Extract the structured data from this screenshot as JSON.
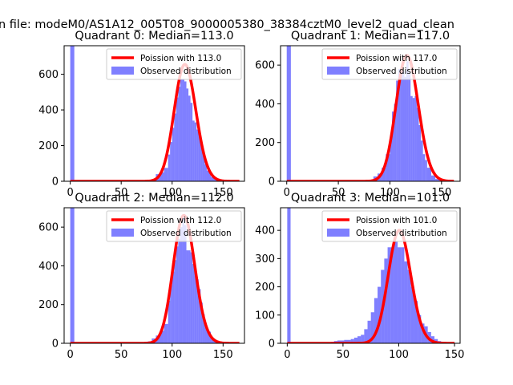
{
  "figure": {
    "suptitle": "n file: modeM0/AS1A12_005T08_9000005380_38384cztM0_level2_quad_clean"
  },
  "chart_data": [
    {
      "type": "bar",
      "title": "Quadrant 0: Median=113.0",
      "median": 113.0,
      "xlim": [
        -6,
        171
      ],
      "ylim": [
        0,
        760
      ],
      "xticks": [
        0,
        50,
        100,
        150
      ],
      "yticks": [
        0,
        200,
        400,
        600
      ],
      "legend": {
        "placement": "top-right",
        "entries": [
          "Poission with 113.0",
          "Observed distribution"
        ]
      },
      "hist": {
        "name": "Observed distribution",
        "color": "#0000ff",
        "alpha": 0.5,
        "edges": [
          0,
          4,
          8,
          12,
          16,
          20,
          24,
          28,
          32,
          36,
          40,
          44,
          48,
          52,
          56,
          60,
          64,
          68,
          72,
          76,
          80,
          84,
          88,
          92,
          96,
          98,
          100,
          102,
          104,
          106,
          108,
          110,
          112,
          114,
          116,
          118,
          120,
          122,
          124,
          126,
          128,
          130,
          132,
          134,
          138,
          142,
          146,
          150,
          154,
          158,
          162,
          166
        ],
        "values": [
          760,
          0,
          0,
          0,
          0,
          0,
          0,
          0,
          0,
          0,
          0,
          0,
          0,
          0,
          0,
          0,
          0,
          0,
          0,
          0,
          5,
          40,
          50,
          75,
          150,
          220,
          300,
          380,
          470,
          530,
          570,
          570,
          560,
          520,
          480,
          440,
          340,
          330,
          290,
          265,
          210,
          150,
          95,
          60,
          25,
          12,
          6,
          3,
          2,
          0,
          0
        ]
      },
      "fit": {
        "name": "Poission with 113.0",
        "color": "#ff0000",
        "mu": 113.0,
        "peak": 655,
        "x_range": [
          0,
          166
        ]
      }
    },
    {
      "type": "bar",
      "title": "Quadrant 1: Median=117.0",
      "median": 117.0,
      "xlim": [
        -6,
        168
      ],
      "ylim": [
        0,
        700
      ],
      "xticks": [
        0,
        50,
        100,
        150
      ],
      "yticks": [
        0,
        200,
        400,
        600
      ],
      "legend": {
        "placement": "top-right",
        "entries": [
          "Poission with 117.0",
          "Observed distribution"
        ]
      },
      "hist": {
        "name": "Observed distribution",
        "color": "#0000ff",
        "alpha": 0.5,
        "edges": [
          0,
          4,
          8,
          12,
          16,
          20,
          24,
          28,
          32,
          36,
          40,
          44,
          48,
          52,
          56,
          60,
          64,
          68,
          72,
          76,
          80,
          84,
          88,
          92,
          96,
          100,
          102,
          104,
          106,
          108,
          110,
          112,
          114,
          116,
          118,
          120,
          122,
          124,
          126,
          128,
          130,
          132,
          134,
          136,
          140,
          144,
          148,
          152,
          156,
          160,
          164
        ],
        "values": [
          700,
          0,
          0,
          0,
          0,
          0,
          0,
          0,
          0,
          0,
          0,
          0,
          0,
          0,
          0,
          0,
          0,
          0,
          0,
          0,
          5,
          25,
          40,
          70,
          140,
          230,
          360,
          400,
          520,
          580,
          560,
          570,
          540,
          620,
          560,
          440,
          430,
          440,
          380,
          290,
          210,
          140,
          110,
          70,
          30,
          12,
          6,
          2,
          0,
          0
        ]
      },
      "fit": {
        "name": "Poission with 117.0",
        "color": "#ff0000",
        "mu": 117.0,
        "peak": 650,
        "x_range": [
          0,
          162
        ]
      }
    },
    {
      "type": "bar",
      "title": "Quadrant 2: Median=112.0",
      "median": 112.0,
      "xlim": [
        -6,
        171
      ],
      "ylim": [
        0,
        700
      ],
      "xticks": [
        0,
        50,
        100,
        150
      ],
      "yticks": [
        0,
        200,
        400,
        600
      ],
      "legend": {
        "placement": "top-right",
        "entries": [
          "Poission with 112.0",
          "Observed distribution"
        ]
      },
      "hist": {
        "name": "Observed distribution",
        "color": "#0000ff",
        "alpha": 0.5,
        "edges": [
          0,
          4,
          8,
          12,
          16,
          20,
          24,
          28,
          32,
          36,
          40,
          44,
          48,
          52,
          56,
          60,
          64,
          68,
          72,
          76,
          80,
          84,
          88,
          92,
          96,
          98,
          100,
          102,
          104,
          106,
          108,
          110,
          112,
          114,
          116,
          118,
          120,
          122,
          124,
          126,
          128,
          130,
          132,
          134,
          138,
          142,
          146,
          150,
          154,
          158,
          162,
          166
        ],
        "values": [
          700,
          0,
          0,
          0,
          0,
          0,
          0,
          0,
          0,
          0,
          0,
          0,
          0,
          0,
          0,
          0,
          0,
          0,
          5,
          10,
          25,
          40,
          65,
          100,
          220,
          300,
          370,
          430,
          500,
          540,
          600,
          650,
          610,
          480,
          480,
          470,
          410,
          380,
          330,
          280,
          210,
          150,
          100,
          60,
          25,
          10,
          5,
          3,
          2,
          0,
          0
        ]
      },
      "fit": {
        "name": "Poission with 112.0",
        "color": "#ff0000",
        "mu": 112.0,
        "peak": 660,
        "x_range": [
          0,
          166
        ]
      }
    },
    {
      "type": "bar",
      "title": "Quadrant 3: Median=101.0",
      "median": 101.0,
      "xlim": [
        -6,
        155
      ],
      "ylim": [
        0,
        480
      ],
      "xticks": [
        0,
        50,
        100,
        150
      ],
      "yticks": [
        0,
        100,
        200,
        300,
        400
      ],
      "legend": {
        "placement": "top-right",
        "entries": [
          "Poission with 101.0",
          "Observed distribution"
        ]
      },
      "hist": {
        "name": "Observed distribution",
        "color": "#0000ff",
        "alpha": 0.5,
        "edges": [
          0,
          3,
          6,
          9,
          12,
          15,
          18,
          21,
          24,
          27,
          30,
          33,
          36,
          39,
          42,
          45,
          48,
          51,
          54,
          57,
          60,
          63,
          66,
          69,
          72,
          75,
          78,
          81,
          84,
          87,
          90,
          93,
          96,
          99,
          102,
          105,
          108,
          111,
          114,
          117,
          120,
          123,
          126,
          129,
          132,
          135,
          138,
          141,
          144,
          147,
          150
        ],
        "values": [
          480,
          0,
          0,
          0,
          0,
          0,
          0,
          0,
          0,
          0,
          0,
          2,
          3,
          5,
          8,
          10,
          10,
          12,
          12,
          15,
          20,
          25,
          30,
          50,
          80,
          110,
          160,
          200,
          260,
          300,
          340,
          340,
          360,
          340,
          340,
          290,
          260,
          200,
          150,
          100,
          70,
          60,
          40,
          25,
          15,
          8,
          4,
          2,
          1,
          0
        ]
      },
      "fit": {
        "name": "Poission with 101.0",
        "color": "#ff0000",
        "mu": 101.0,
        "peak": 400,
        "x_range": [
          0,
          150
        ]
      }
    }
  ]
}
